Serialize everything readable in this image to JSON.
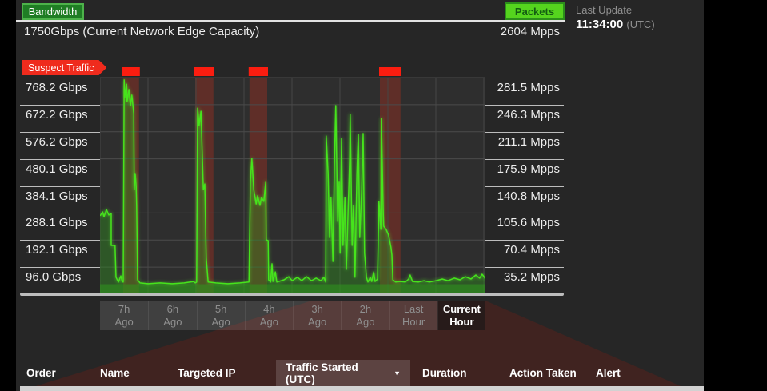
{
  "header": {
    "bandwidth_label": "Bandwidth",
    "capacity_text": "1750Gbps (Current Network Edge Capacity)",
    "packets_label": "Packets",
    "packets_value": "2604 Mpps",
    "last_update_label": "Last Update",
    "last_update_time": "11:34:00",
    "last_update_tz": "(UTC)"
  },
  "chart": {
    "suspect_label": "Suspect Traffic"
  },
  "colors": {
    "accent_green_bright": "#55d41e",
    "accent_green_dark": "#1f7d24",
    "line_green": "#46e41c",
    "area_green": "rgba(47,151,29,0.40)",
    "base_green": "rgba(47,151,29,0.55)",
    "suspect_red": "#ef2b1d",
    "band_red": "rgba(210,45,28,0.30)",
    "cap_red": "#fb1d10",
    "panel_bg": "#262626",
    "chart_bg": "#2e2e2e",
    "grid": "#4b4b4b"
  },
  "chart_data": {
    "type": "area",
    "title": "",
    "xlabel": "",
    "ylabel_left": "Gbps",
    "ylabel_right": "Mpps",
    "grid": true,
    "legend_position": "none",
    "x_axis": {
      "labels": [
        [
          "7h",
          "Ago"
        ],
        [
          "6h",
          "Ago"
        ],
        [
          "5h",
          "Ago"
        ],
        [
          "4h",
          "Ago"
        ],
        [
          "3h",
          "Ago"
        ],
        [
          "2h",
          "Ago"
        ],
        [
          "Last",
          "Hour"
        ],
        [
          "Current",
          "Hour"
        ]
      ],
      "hours_ago_range": [
        7.53,
        -0.5
      ]
    },
    "y_axis_left": {
      "unit": "Gbps",
      "max": 768.2,
      "min": 0,
      "ticks": [
        "768.2 Gbps",
        "672.2 Gbps",
        "576.2 Gbps",
        "480.1 Gbps",
        "384.1 Gbps",
        "288.1 Gbps",
        "192.1 Gbps",
        "96.0 Gbps"
      ]
    },
    "y_axis_right": {
      "unit": "Mpps",
      "max": 281.5,
      "min": 0,
      "ticks": [
        "281.5 Mpps",
        "246.3 Mpps",
        "211.1 Mpps",
        "175.9 Mpps",
        "140.8 Mpps",
        "105.6 Mpps",
        "70.4 Mpps",
        "35.2 Mpps"
      ]
    },
    "suspect_windows_hours_ago": [
      [
        7.05,
        6.72
      ],
      [
        5.55,
        5.17
      ],
      [
        4.42,
        4.05
      ],
      [
        1.7,
        1.27
      ]
    ],
    "series": [
      {
        "name": "Bandwidth",
        "unit": "Gbps",
        "points_hours_ago_vs_gbps": [
          [
            7.53,
            278
          ],
          [
            7.48,
            292
          ],
          [
            7.45,
            275
          ],
          [
            7.4,
            300
          ],
          [
            7.35,
            281
          ],
          [
            7.3,
            286
          ],
          [
            7.3,
            173
          ],
          [
            7.22,
            173
          ],
          [
            7.2,
            60
          ],
          [
            7.15,
            43
          ],
          [
            7.1,
            65
          ],
          [
            7.07,
            45
          ],
          [
            7.05,
            43
          ],
          [
            7.03,
            760
          ],
          [
            7.02,
            697
          ],
          [
            6.98,
            745
          ],
          [
            6.97,
            683
          ],
          [
            6.93,
            726
          ],
          [
            6.9,
            669
          ],
          [
            6.87,
            706
          ],
          [
            6.83,
            641
          ],
          [
            6.82,
            371
          ],
          [
            6.8,
            428
          ],
          [
            6.78,
            383
          ],
          [
            6.77,
            315
          ],
          [
            6.75,
            51
          ],
          [
            6.7,
            40
          ],
          [
            6.53,
            37
          ],
          [
            6.28,
            40
          ],
          [
            6.03,
            37
          ],
          [
            5.78,
            40
          ],
          [
            5.58,
            45
          ],
          [
            5.55,
            40
          ],
          [
            5.52,
            43
          ],
          [
            5.5,
            660
          ],
          [
            5.47,
            598
          ],
          [
            5.43,
            649
          ],
          [
            5.38,
            371
          ],
          [
            5.35,
            391
          ],
          [
            5.32,
            128
          ],
          [
            5.28,
            43
          ],
          [
            5.12,
            40
          ],
          [
            4.87,
            37
          ],
          [
            4.62,
            40
          ],
          [
            4.43,
            43
          ],
          [
            4.4,
            400
          ],
          [
            4.37,
            482
          ],
          [
            4.33,
            371
          ],
          [
            4.28,
            320
          ],
          [
            4.25,
            349
          ],
          [
            4.2,
            315
          ],
          [
            4.17,
            343
          ],
          [
            4.12,
            329
          ],
          [
            4.08,
            400
          ],
          [
            4.07,
            193
          ],
          [
            4.03,
            190
          ],
          [
            4.02,
            51
          ],
          [
            3.98,
            43
          ],
          [
            3.95,
            108
          ],
          [
            3.93,
            45
          ],
          [
            3.88,
            79
          ],
          [
            3.85,
            43
          ],
          [
            3.7,
            51
          ],
          [
            3.6,
            62
          ],
          [
            3.53,
            48
          ],
          [
            3.42,
            60
          ],
          [
            3.33,
            48
          ],
          [
            3.23,
            62
          ],
          [
            3.13,
            48
          ],
          [
            3.03,
            57
          ],
          [
            2.93,
            48
          ],
          [
            2.87,
            60
          ],
          [
            2.83,
            43
          ],
          [
            2.82,
            561
          ],
          [
            2.78,
            428
          ],
          [
            2.75,
            201
          ],
          [
            2.72,
            343
          ],
          [
            2.68,
            116
          ],
          [
            2.65,
            456
          ],
          [
            2.62,
            669
          ],
          [
            2.58,
            258
          ],
          [
            2.55,
            400
          ],
          [
            2.53,
            145
          ],
          [
            2.5,
            553
          ],
          [
            2.47,
            173
          ],
          [
            2.43,
            343
          ],
          [
            2.4,
            88
          ],
          [
            2.37,
            258
          ],
          [
            2.33,
            485
          ],
          [
            2.32,
            638
          ],
          [
            2.28,
            173
          ],
          [
            2.25,
            315
          ],
          [
            2.22,
            60
          ],
          [
            2.18,
            428
          ],
          [
            2.15,
            567
          ],
          [
            2.12,
            201
          ],
          [
            2.08,
            371
          ],
          [
            2.05,
            570
          ],
          [
            2.02,
            145
          ],
          [
            1.98,
            60
          ],
          [
            1.95,
            43
          ],
          [
            1.9,
            60
          ],
          [
            1.87,
            45
          ],
          [
            1.83,
            79
          ],
          [
            1.8,
            45
          ],
          [
            1.75,
            54
          ],
          [
            1.72,
            329
          ],
          [
            1.68,
            230
          ],
          [
            1.67,
            624
          ],
          [
            1.63,
            286
          ],
          [
            1.62,
            241
          ],
          [
            1.57,
            230
          ],
          [
            1.52,
            210
          ],
          [
            1.47,
            167
          ],
          [
            1.45,
            139
          ],
          [
            1.43,
            51
          ],
          [
            1.37,
            43
          ],
          [
            1.27,
            45
          ],
          [
            1.17,
            43
          ],
          [
            1.1,
            54
          ],
          [
            1.07,
            68
          ],
          [
            1.02,
            45
          ],
          [
            0.9,
            43
          ],
          [
            0.78,
            48
          ],
          [
            0.67,
            43
          ],
          [
            0.53,
            48
          ],
          [
            0.4,
            54
          ],
          [
            0.28,
            48
          ],
          [
            0.15,
            57
          ],
          [
            0.03,
            51
          ],
          [
            -0.08,
            62
          ],
          [
            -0.2,
            54
          ],
          [
            -0.3,
            68
          ],
          [
            -0.38,
            57
          ],
          [
            -0.43,
            71
          ],
          [
            -0.48,
            60
          ],
          [
            -0.5,
            54
          ]
        ]
      }
    ]
  },
  "table": {
    "columns": [
      {
        "label": "Order",
        "sorted": false
      },
      {
        "label": "Name",
        "sorted": false
      },
      {
        "label": "Targeted IP",
        "sorted": false
      },
      {
        "label": "Traffic Started (UTC)",
        "sorted": true,
        "sort_icon": "caret-down"
      },
      {
        "label": "Duration",
        "sorted": false
      },
      {
        "label": "Action Taken",
        "sorted": false
      },
      {
        "label": "Alert",
        "sorted": false
      }
    ],
    "rows": []
  }
}
